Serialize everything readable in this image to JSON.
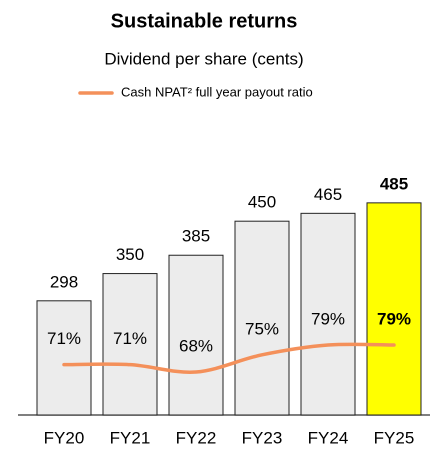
{
  "chart_data": {
    "type": "bar",
    "title": "Sustainable returns",
    "subtitle": "Dividend per share (cents)",
    "categories": [
      "FY20",
      "FY21",
      "FY22",
      "FY23",
      "FY24",
      "FY25"
    ],
    "values": [
      298,
      350,
      385,
      450,
      465,
      485
    ],
    "color": "#ececec",
    "highlight_category": "FY25",
    "highlight_color": "#ffff00",
    "ylim": [
      80,
      500
    ],
    "line": {
      "name": "Cash NPAT² full year payout ratio",
      "color": "#f4905a",
      "values": [
        71,
        71,
        68,
        75,
        79,
        79
      ],
      "value_labels": [
        "71%",
        "71%",
        "68%",
        "75%",
        "79%",
        "79%"
      ]
    }
  }
}
